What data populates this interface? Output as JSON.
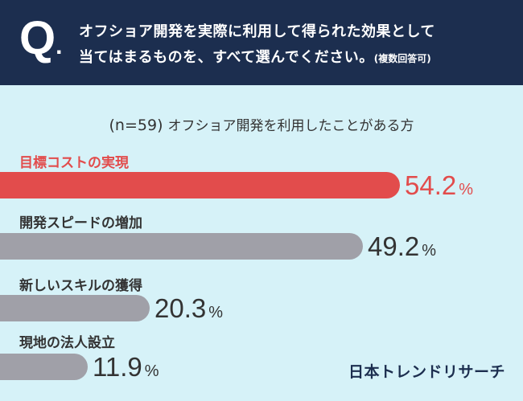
{
  "header": {
    "q_letter": "Q",
    "q_dot": ".",
    "question_line1": "オフショア開発を実際に利用して得られた効果として",
    "question_line2": "当てはまるものを、すべて選んでください。",
    "question_note": "(複数回答可)"
  },
  "sample": {
    "n_text": "(n=59)",
    "description": "オフショア開発を利用したことがある方"
  },
  "brand": "日本トレンドリサーチ",
  "colors": {
    "header_bg": "#1c2e4f",
    "page_bg": "#d6f2f8",
    "highlight": "#e24c4c",
    "bar_gray": "#a0a0a8",
    "text": "#333333"
  },
  "chart_data": {
    "type": "bar",
    "orientation": "horizontal",
    "unit": "%",
    "categories": [
      "目標コストの実現",
      "開発スピードの増加",
      "新しいスキルの獲得",
      "現地の法人設立"
    ],
    "values": [
      54.2,
      49.2,
      20.3,
      11.9
    ],
    "highlight_index": 0
  }
}
